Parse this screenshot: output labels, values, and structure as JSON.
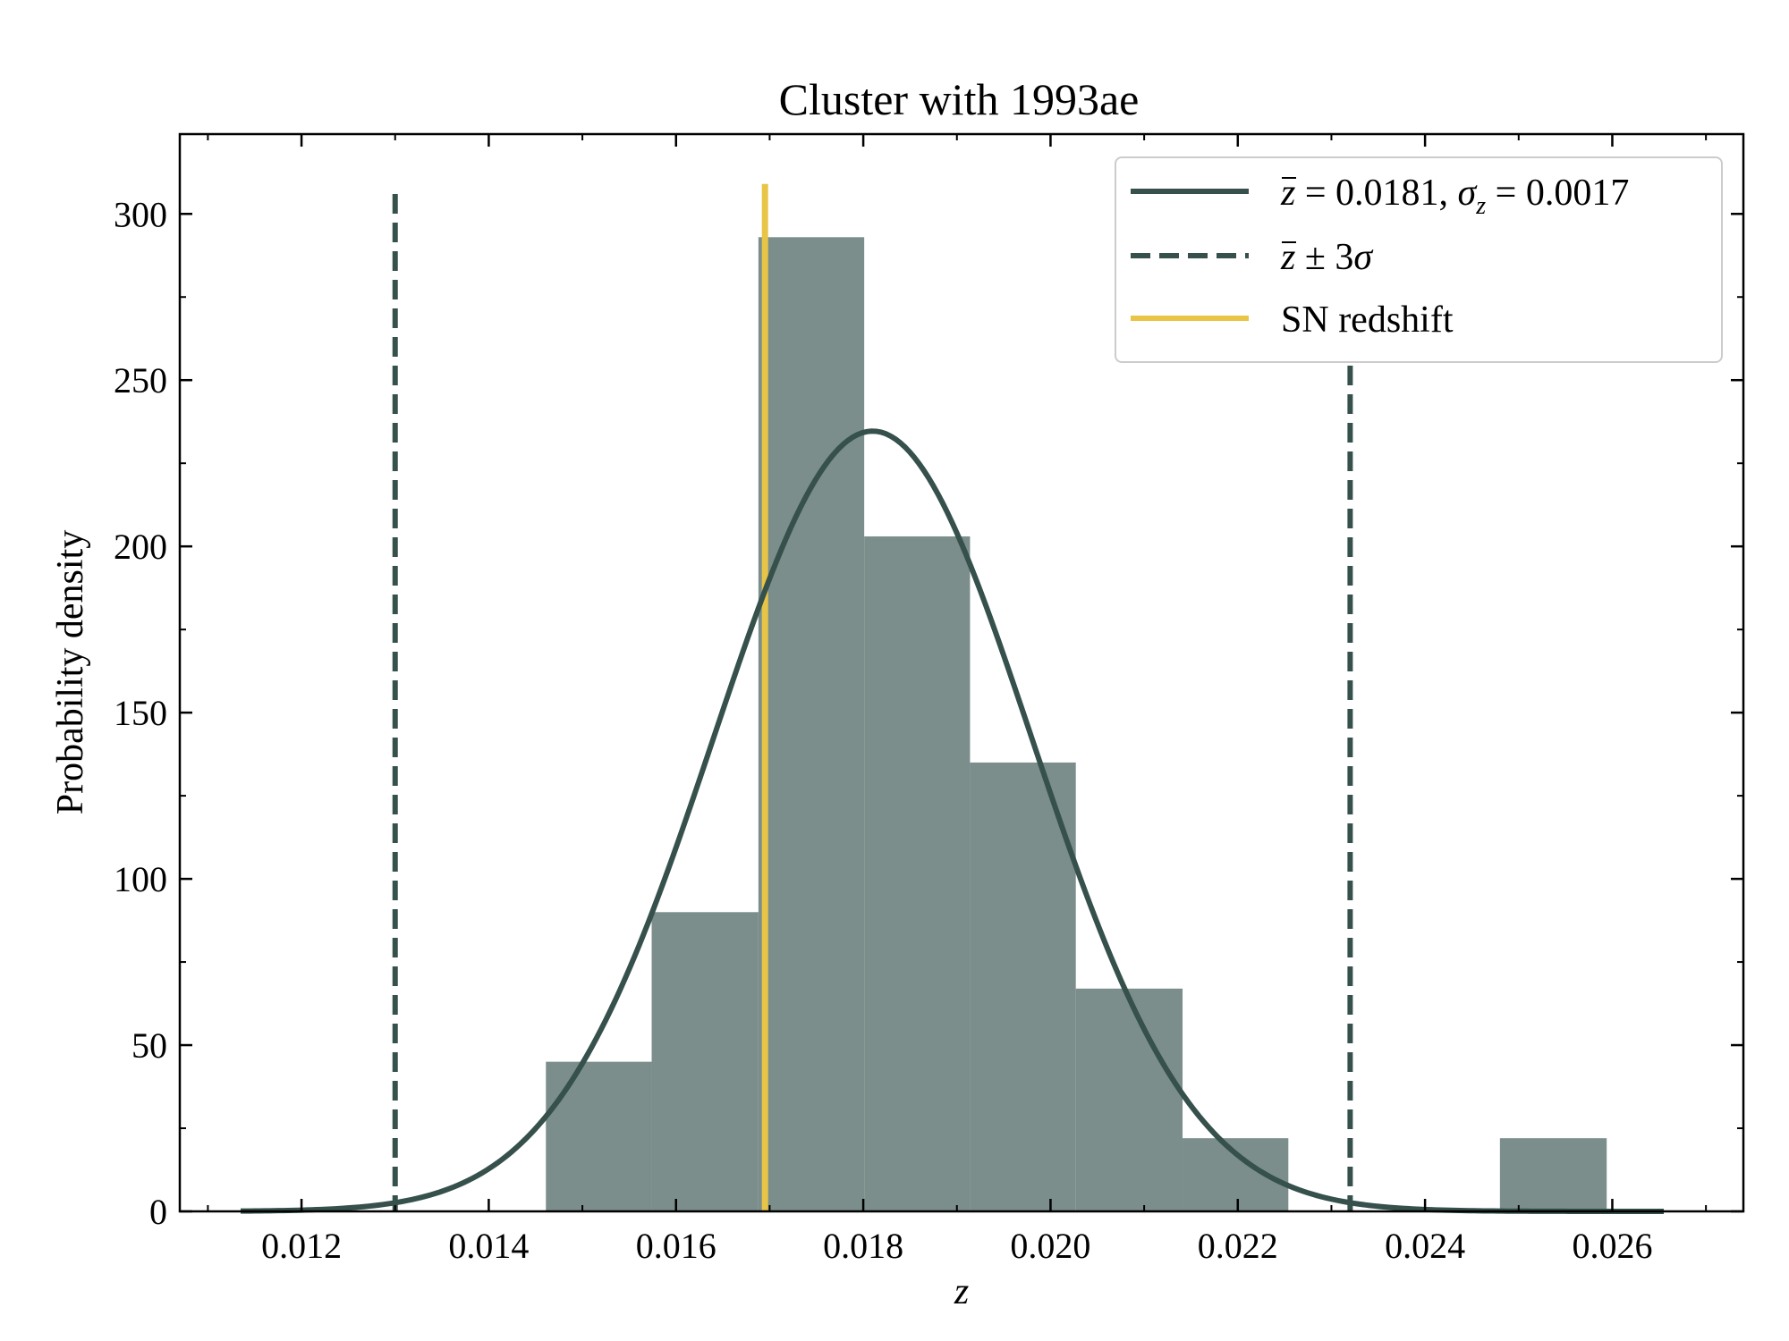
{
  "chart_data": {
    "type": "bar",
    "title": "Cluster with 1993ae",
    "xlabel": "z",
    "ylabel": "Probability density",
    "xlim": [
      0.0107,
      0.0274
    ],
    "ylim": [
      0,
      324
    ],
    "xticks": [
      0.012,
      0.014,
      0.016,
      0.018,
      0.02,
      0.022,
      0.024,
      0.026
    ],
    "xtick_labels": [
      "0.012",
      "0.014",
      "0.016",
      "0.018",
      "0.020",
      "0.022",
      "0.024",
      "0.026"
    ],
    "yticks": [
      0,
      50,
      100,
      150,
      200,
      250,
      300
    ],
    "ytick_labels": [
      "0",
      "50",
      "100",
      "150",
      "200",
      "250",
      "300"
    ],
    "grid": false,
    "legend_position": "top-right",
    "histogram": {
      "bin_edges": [
        0.01461,
        0.01574,
        0.01688,
        0.01801,
        0.01914,
        0.02027,
        0.02141,
        0.02254,
        0.02367,
        0.0248,
        0.02594
      ],
      "values": [
        45,
        90,
        293,
        203,
        135,
        67,
        22,
        0,
        0,
        22
      ],
      "color": "#7b8e8b"
    },
    "gaussian_fit": {
      "mean": 0.0181,
      "sigma": 0.0017,
      "x_range": [
        0.01135,
        0.02655
      ],
      "color": "#36504c",
      "legend": {
        "z_bar": "z",
        "eq1": " = 0.0181, ",
        "sigma": "σ",
        "sigma_sub": "z",
        "eq2": " = 0.0017"
      }
    },
    "three_sigma_lines": {
      "x": [
        0.013,
        0.0232
      ],
      "y_top": 306,
      "color": "#36504c",
      "legend": {
        "z_bar": "z",
        "rest": " ± 3",
        "sigma": "σ"
      }
    },
    "sn_redshift": {
      "x": 0.01695,
      "y_top": 309,
      "color": "#e8c547",
      "legend": "SN redshift"
    }
  }
}
